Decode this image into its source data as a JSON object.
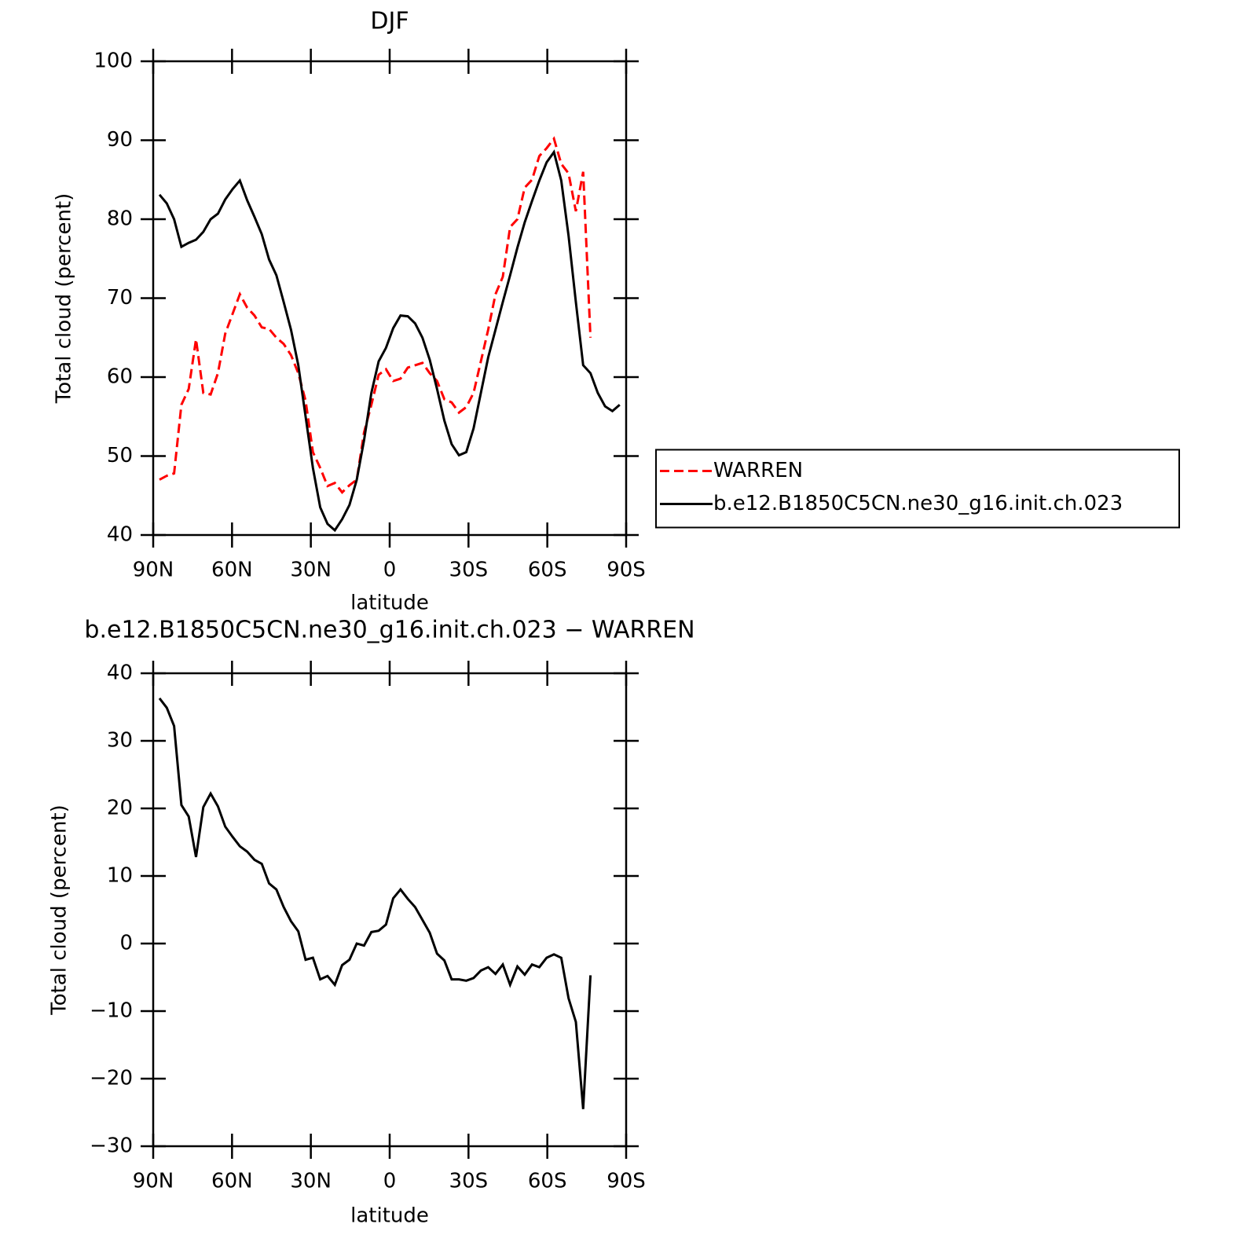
{
  "chart_data": [
    {
      "type": "line",
      "title": "DJF",
      "xlabel": "latitude",
      "ylabel": "Total cloud (percent)",
      "x": [
        87.6,
        84.82,
        82.04,
        79.26,
        76.48,
        73.7,
        70.92,
        68.14,
        65.36,
        62.58,
        59.8,
        57.02,
        54.24,
        51.46,
        48.68,
        45.9,
        43.12,
        40.34,
        37.56,
        34.78,
        32,
        29.22,
        26.44,
        23.66,
        20.88,
        18.1,
        15.32,
        12.54,
        9.76,
        6.98,
        4.2,
        1.42,
        -1.36,
        -4.14,
        -6.92,
        -9.7,
        -12.48,
        -15.26,
        -18.04,
        -20.82,
        -23.6,
        -26.38,
        -29.16,
        -31.94,
        -34.72,
        -37.5,
        -40.28,
        -43.06,
        -45.84,
        -48.62,
        -51.4,
        -54.18,
        -56.96,
        -59.74,
        -62.52,
        -65.3,
        -68.08,
        -70.86,
        -73.64,
        -76.42,
        -79.2,
        -81.98,
        -84.76,
        -87.54
      ],
      "series": [
        {
          "name": "WARREN",
          "color": "#ff0000",
          "linestyle": "dashed",
          "values": [
            47,
            47.5,
            47.8,
            56.5,
            58.5,
            64.8,
            58,
            57.8,
            60.5,
            65.5,
            68,
            70.5,
            68.8,
            67.8,
            66.3,
            66.1,
            65,
            64.2,
            62.8,
            60.5,
            57,
            50.5,
            48.5,
            46.2,
            46.6,
            45.4,
            46.3,
            47,
            53,
            56.5,
            60.3,
            61,
            59.5,
            59.8,
            61.2,
            61.5,
            61.8,
            60.5,
            59.5,
            57.2,
            56.8,
            55.5,
            56.2,
            58,
            62,
            66,
            70.5,
            72.7,
            79,
            80,
            84,
            85,
            88,
            89,
            90.2,
            87,
            85.8,
            81,
            86,
            65,
            null,
            null,
            null,
            null
          ]
        },
        {
          "name": "b.e12.B1850C5CN.ne30_g16.init.ch.023",
          "color": "#000000",
          "linestyle": "solid",
          "values": [
            83.1,
            82,
            80,
            76.5,
            77,
            77.4,
            78.4,
            80,
            80.7,
            82.5,
            83.8,
            84.9,
            82.4,
            80.3,
            78.1,
            74.9,
            72.9,
            69.5,
            66,
            61.5,
            55,
            48.5,
            43.5,
            41.4,
            40.6,
            42,
            43.8,
            47,
            52,
            58,
            62,
            63.7,
            66.2,
            67.8,
            67.7,
            66.8,
            65,
            62.2,
            58.5,
            54.5,
            51.5,
            50.1,
            50.5,
            53.5,
            58,
            62.5,
            66,
            69.5,
            72.9,
            76.4,
            79.6,
            82.3,
            84.9,
            87.2,
            88.5,
            84.9,
            77.9,
            69.5,
            61.5,
            60.5,
            58,
            56.3,
            55.7,
            56.5
          ]
        }
      ],
      "xlim": [
        90,
        -90
      ],
      "xticks": [
        {
          "value": 90,
          "label": "90N"
        },
        {
          "value": 60,
          "label": "60N"
        },
        {
          "value": 30,
          "label": "30N"
        },
        0,
        {
          "value": -30,
          "label": "30S"
        },
        {
          "value": -60,
          "label": "60S"
        },
        {
          "value": -90,
          "label": "90S"
        }
      ],
      "ylim": [
        40,
        100
      ],
      "yticks": [
        40,
        50,
        60,
        70,
        80,
        90,
        100
      ],
      "legend": "right"
    },
    {
      "type": "line",
      "title": "b.e12.B1850C5CN.ne30_g16.init.ch.023 − WARREN",
      "xlabel": "latitude",
      "ylabel": "Total cloud (percent)",
      "x": [
        87.6,
        84.82,
        82.04,
        79.26,
        76.48,
        73.7,
        70.92,
        68.14,
        65.36,
        62.58,
        59.8,
        57.02,
        54.24,
        51.46,
        48.68,
        45.9,
        43.12,
        40.34,
        37.56,
        34.78,
        32,
        29.22,
        26.44,
        23.66,
        20.88,
        18.1,
        15.32,
        12.54,
        9.76,
        6.98,
        4.2,
        1.42,
        -1.36,
        -4.14,
        -6.92,
        -9.7,
        -12.48,
        -15.26,
        -18.04,
        -20.82,
        -23.6,
        -26.38,
        -29.16,
        -31.94,
        -34.72,
        -37.5,
        -40.28,
        -43.06,
        -45.84,
        -48.62,
        -51.4,
        -54.18,
        -56.96,
        -59.74,
        -62.52,
        -65.3,
        -68.08,
        -70.86,
        -73.64,
        -76.42
      ],
      "values": [
        36.3,
        34.9,
        32.2,
        20.5,
        18.8,
        12.8,
        20.2,
        22.2,
        20.3,
        17.3,
        15.8,
        14.4,
        13.6,
        12.4,
        11.8,
        8.9,
        8,
        5.4,
        3.3,
        1.8,
        -2.4,
        -2.1,
        -5.3,
        -4.8,
        -6.1,
        -3.2,
        -2.4,
        0,
        -0.3,
        1.7,
        1.9,
        2.8,
        6.7,
        8,
        6.6,
        5.4,
        3.5,
        1.6,
        -1.5,
        -2.5,
        -5.3,
        -5.3,
        -5.5,
        -5.1,
        -4,
        -3.5,
        -4.5,
        -3.1,
        -6.1,
        -3.4,
        -4.6,
        -3.1,
        -3.5,
        -2.1,
        -1.6,
        -2.1,
        -8.1,
        -11.6,
        -24.5,
        -4.7
      ],
      "color": "#000000",
      "xlim": [
        90,
        -90
      ],
      "xticks": [
        {
          "value": 90,
          "label": "90N"
        },
        {
          "value": 60,
          "label": "60N"
        },
        {
          "value": 30,
          "label": "30N"
        },
        0,
        {
          "value": -30,
          "label": "30S"
        },
        {
          "value": -60,
          "label": "60S"
        },
        {
          "value": -90,
          "label": "90S"
        }
      ],
      "ylim": [
        -30,
        40
      ],
      "yticks": [
        {
          "value": -30,
          "label": "−30"
        },
        {
          "value": -20,
          "label": "−20"
        },
        {
          "value": -10,
          "label": "−10"
        },
        0,
        10,
        20,
        30,
        40
      ]
    }
  ]
}
